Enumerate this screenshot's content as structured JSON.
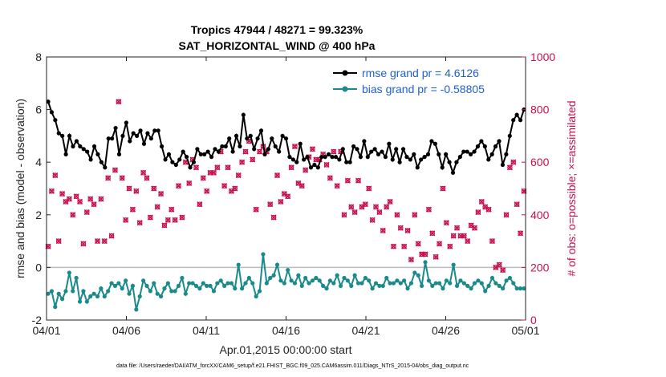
{
  "chart_data": {
    "type": "line",
    "title": "Tropics 47944 / 48271 = 99.323%",
    "subtitle": "SAT_HORIZONTAL_WIND @ 400 hPa",
    "xlabel": "Apr.01,2015 00:00:00 start",
    "ylabel_left": "rmse and bias (model - observation)",
    "ylabel_right": "# of obs: o=possible; ×=assimilated",
    "ylim_left": [
      -2,
      8
    ],
    "ylim_right": [
      0,
      1000
    ],
    "xlim_days": [
      0,
      30
    ],
    "x_ticks": [
      {
        "day": 0,
        "label": "04/01"
      },
      {
        "day": 5,
        "label": "04/06"
      },
      {
        "day": 10,
        "label": "04/11"
      },
      {
        "day": 15,
        "label": "04/16"
      },
      {
        "day": 20,
        "label": "04/21"
      },
      {
        "day": 25,
        "label": "04/26"
      },
      {
        "day": 30,
        "label": "05/01"
      }
    ],
    "y_ticks_left": [
      "-2",
      "0",
      "2",
      "4",
      "6",
      "8"
    ],
    "y_ticks_right": [
      "0",
      "200",
      "400",
      "600",
      "800",
      "1000"
    ],
    "legend_position": "top-right",
    "series": [
      {
        "name": "rmse grand pr = 4.6126",
        "color": "#000000",
        "axis": "left",
        "values": [
          6.3,
          5.9,
          5.6,
          5.1,
          5.0,
          4.3,
          5.0,
          4.6,
          4.8,
          4.6,
          4.5,
          4.4,
          4.1,
          4.6,
          4.3,
          4.0,
          3.8,
          4.9,
          4.9,
          5.3,
          4.3,
          5.0,
          5.5,
          4.8,
          5.1,
          5.0,
          5.2,
          4.7,
          5.1,
          4.9,
          5.2,
          5.2,
          4.6,
          4.1,
          4.3,
          4.0,
          3.9,
          4.1,
          4.4,
          4.2,
          3.8,
          4.0,
          4.5,
          4.3,
          4.3,
          4.4,
          4.2,
          4.5,
          4.4,
          4.6,
          4.6,
          4.9,
          4.4,
          5.0,
          4.6,
          5.8,
          4.9,
          5.0,
          4.5,
          4.9,
          5.2,
          4.3,
          4.5,
          4.9,
          4.6,
          4.4,
          5.0,
          4.9,
          4.2,
          4.1,
          4.0,
          4.7,
          4.1,
          4.2,
          3.8,
          3.9,
          3.8,
          4.2,
          4.2,
          4.3,
          4.2,
          4.2,
          4.1,
          4.5,
          4.0,
          4.0,
          4.6,
          4.5,
          4.2,
          4.8,
          4.2,
          4.4,
          4.5,
          4.3,
          4.4,
          4.2,
          4.7,
          4.1,
          4.5,
          4.0,
          4.5,
          4.2,
          4.1,
          4.3,
          3.8,
          4.1,
          4.2,
          4.3,
          4.8,
          4.7,
          4.3,
          3.8,
          4.3,
          4.0,
          3.6,
          4.0,
          4.2,
          4.4,
          4.4,
          4.3,
          4.4,
          4.6,
          4.8,
          4.6,
          4.1,
          4.3,
          4.6,
          4.8,
          3.9,
          4.3,
          5.0,
          5.6,
          5.8,
          5.6,
          6.0
        ]
      },
      {
        "name": "bias grand pr = -0.58805",
        "color": "#1a8a8a",
        "axis": "left",
        "values": [
          -1.0,
          -0.9,
          -1.5,
          -1.0,
          -1.2,
          -0.9,
          -0.2,
          -0.9,
          -0.4,
          -1.3,
          -0.9,
          -1.3,
          -1.1,
          -1.0,
          -1.1,
          -0.8,
          -1.1,
          -0.9,
          -0.6,
          -0.7,
          -0.6,
          -0.8,
          -0.5,
          -1.0,
          -0.7,
          -1.6,
          -1.1,
          -0.5,
          -0.7,
          -0.9,
          -0.6,
          -1.0,
          -1.1,
          -0.8,
          -0.6,
          -0.9,
          -0.9,
          -0.7,
          -0.4,
          -1.0,
          -0.6,
          -0.6,
          -0.7,
          -0.8,
          -0.6,
          -0.7,
          -0.7,
          -0.9,
          -0.6,
          -0.5,
          -0.7,
          -0.6,
          -0.6,
          -0.8,
          0.1,
          -0.8,
          -0.6,
          -0.4,
          -0.6,
          -1.1,
          -0.9,
          0.5,
          -0.6,
          -0.4,
          -0.3,
          0.1,
          -0.5,
          -0.6,
          -0.1,
          -0.5,
          -0.6,
          -0.3,
          -0.7,
          -0.4,
          -0.6,
          -0.5,
          -0.4,
          -0.5,
          -0.7,
          -0.8,
          -0.5,
          -0.6,
          -0.3,
          -0.7,
          -0.4,
          -0.5,
          -0.7,
          -0.3,
          -0.6,
          -0.6,
          -0.4,
          -0.5,
          -0.8,
          -0.6,
          -0.7,
          -0.7,
          -0.4,
          -0.6,
          -0.6,
          -0.5,
          -0.6,
          -0.5,
          -0.8,
          -0.6,
          -0.2,
          -0.3,
          -0.7,
          0.2,
          -0.5,
          -0.7,
          -0.6,
          -0.6,
          -0.8,
          -0.5,
          -0.6,
          0.1,
          -0.7,
          -0.5,
          -0.6,
          -0.7,
          -0.8,
          -0.6,
          -0.5,
          -0.6,
          -0.9,
          -0.7,
          -0.4,
          -0.6,
          -0.7,
          -0.8,
          -0.5,
          -0.4,
          -0.6,
          -0.8,
          -0.8,
          -0.8
        ]
      }
    ],
    "obs_possible": [
      280,
      490,
      550,
      300,
      480,
      450,
      460,
      400,
      470,
      450,
      290,
      410,
      460,
      440,
      300,
      460,
      300,
      540,
      320,
      570,
      830,
      540,
      380,
      500,
      420,
      490,
      370,
      560,
      540,
      390,
      500,
      430,
      480,
      360,
      380,
      420,
      380,
      510,
      390,
      600,
      520,
      610,
      580,
      440,
      540,
      490,
      560,
      560,
      580,
      640,
      510,
      580,
      490,
      500,
      550,
      600,
      640,
      680,
      610,
      420,
      640,
      660,
      640,
      440,
      390,
      550,
      450,
      480,
      470,
      580,
      660,
      520,
      510,
      570,
      620,
      650,
      610,
      610,
      630,
      590,
      540,
      640,
      510,
      640,
      400,
      530,
      430,
      410,
      530,
      430,
      440,
      500,
      380,
      430,
      410,
      340,
      430,
      450,
      280,
      400,
      350,
      280,
      340,
      230,
      400,
      290,
      250,
      250,
      420,
      330,
      240,
      290,
      500,
      370,
      280,
      320,
      350,
      320,
      320,
      300,
      360,
      350,
      410,
      450,
      430,
      420,
      300,
      200,
      210,
      190,
      400,
      580,
      600,
      440,
      330,
      490
    ],
    "obs_assimilated": [
      280,
      490,
      550,
      300,
      480,
      450,
      460,
      400,
      470,
      450,
      290,
      410,
      460,
      440,
      300,
      460,
      300,
      540,
      320,
      570,
      830,
      540,
      380,
      500,
      420,
      490,
      370,
      560,
      540,
      390,
      500,
      430,
      480,
      360,
      380,
      420,
      380,
      510,
      390,
      600,
      520,
      610,
      580,
      440,
      540,
      490,
      560,
      560,
      580,
      640,
      510,
      580,
      490,
      500,
      550,
      600,
      640,
      680,
      610,
      420,
      640,
      660,
      640,
      440,
      390,
      550,
      450,
      480,
      470,
      580,
      660,
      520,
      510,
      570,
      620,
      650,
      610,
      610,
      630,
      590,
      540,
      640,
      510,
      640,
      400,
      530,
      430,
      410,
      530,
      430,
      440,
      500,
      380,
      430,
      410,
      340,
      430,
      450,
      280,
      400,
      350,
      280,
      340,
      230,
      400,
      290,
      250,
      250,
      420,
      330,
      240,
      290,
      500,
      370,
      280,
      320,
      350,
      320,
      320,
      300,
      360,
      350,
      410,
      450,
      430,
      420,
      300,
      200,
      210,
      190,
      400,
      580,
      600,
      440,
      330,
      490
    ],
    "colors": {
      "obs": "#c8104f",
      "zero_line": "#bbbbbb",
      "legend_text": "#1f5fd6"
    }
  },
  "footer": "data file: /Users/raeder/DAI/ATM_forcXX/CAM6_setup/f.e21.FHIST_BGC.f09_025.CAM6assim.011/Diags_NTrS_2015-04/obs_diag_output.nc"
}
